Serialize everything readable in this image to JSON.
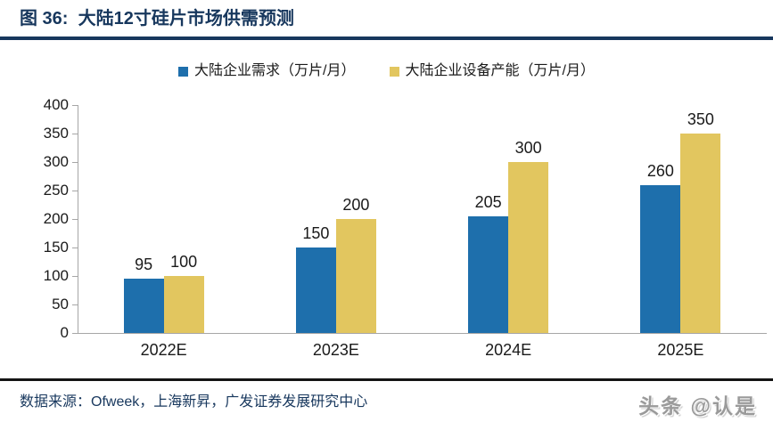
{
  "header": {
    "title": "图 36:  大陆12寸硅片市场供需预测"
  },
  "chart_data": {
    "type": "bar",
    "title": "图 36: 大陆12寸硅片市场供需预测",
    "categories": [
      "2022E",
      "2023E",
      "2024E",
      "2025E"
    ],
    "series": [
      {
        "key": "demand",
        "name": "大陆企业需求（万片/月）",
        "color": "#1E6FAC",
        "values": [
          95,
          150,
          205,
          260
        ]
      },
      {
        "key": "capacity",
        "name": "大陆企业设备产能（万片/月）",
        "color": "#E2C65F",
        "values": [
          100,
          200,
          300,
          350
        ]
      }
    ],
    "xlabel": "",
    "ylabel": "",
    "ylim": [
      0,
      400
    ],
    "yticks": [
      0,
      50,
      100,
      150,
      200,
      250,
      300,
      350,
      400
    ],
    "grid": false,
    "legend_position": "top"
  },
  "footer": {
    "source": "数据来源：Ofweek，上海新昇，广发证券发展研究中心",
    "watermark": "头条 @认是"
  },
  "colors": {
    "accent_navy": "#17375D",
    "bar_blue": "#1E6FAC",
    "bar_yellow": "#E2C65F",
    "axis_gray": "#A6A6A6",
    "text_black": "#1A1A1A",
    "watermark_gray": "#9A9A9A"
  }
}
